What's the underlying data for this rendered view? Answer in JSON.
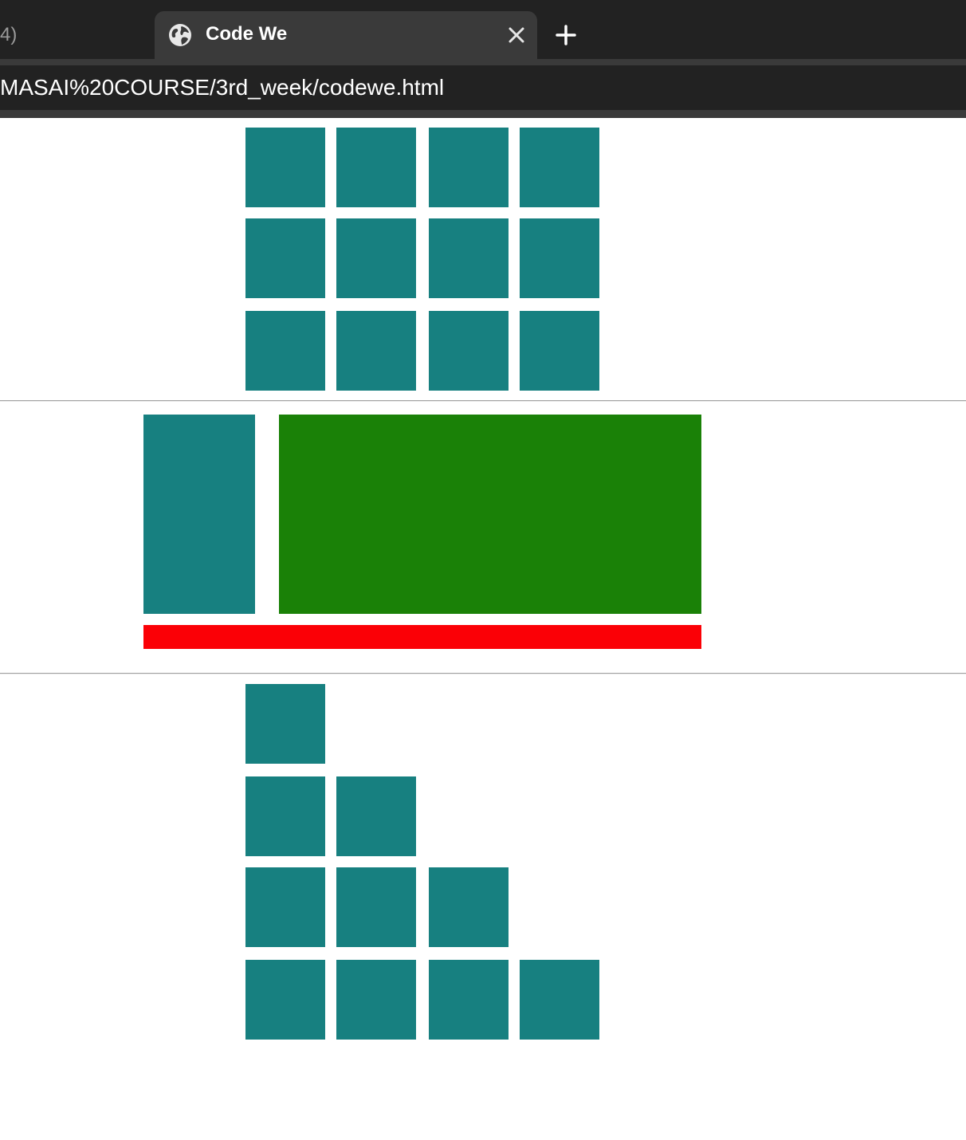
{
  "browser": {
    "prev_tab_label_fragment": "4)",
    "active_tab_title": "Code We",
    "address_url": "MASAI%20COURSE/3rd_week/codewe.html",
    "icons": {
      "tab_favicon": "globe-icon",
      "tab_close": "close-icon",
      "new_tab": "plus-icon"
    }
  },
  "colors": {
    "teal": "#178080",
    "green": "#1a8107",
    "red": "#fb0006",
    "chrome_dark": "#222222",
    "chrome_tab": "#3a3a3a"
  },
  "page": {
    "grid_section": {
      "rows": 3,
      "columns": 4
    },
    "layout_section": {
      "sidebar": "teal",
      "content": "green",
      "footer": "red"
    },
    "staircase_section": {
      "row_counts": [
        1,
        2,
        3,
        4
      ]
    }
  }
}
